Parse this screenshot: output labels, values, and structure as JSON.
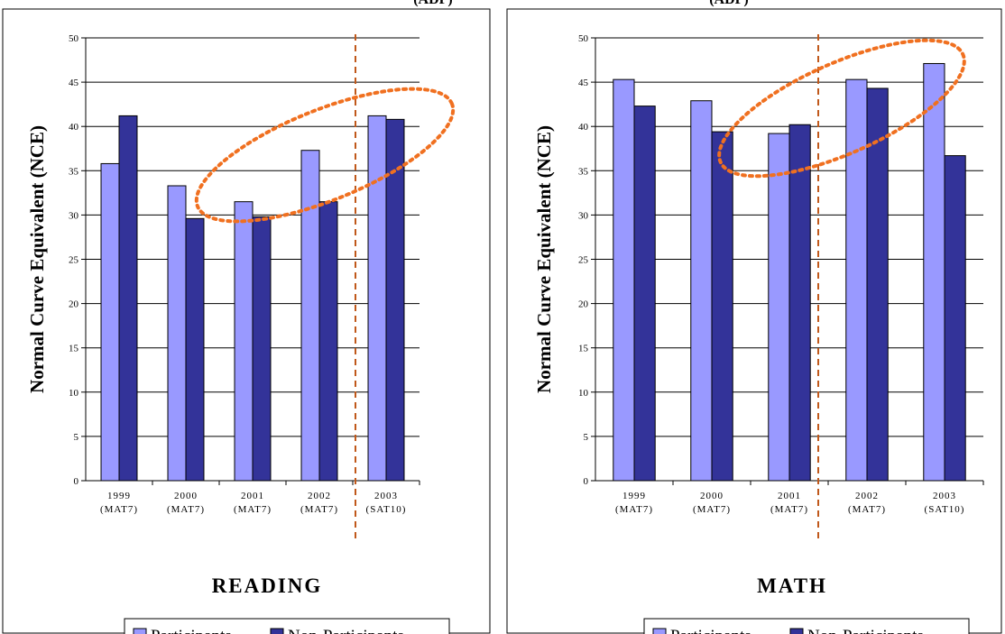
{
  "header": {
    "left_fragment": "(ADP)",
    "right_fragment": "(ADP)"
  },
  "colors": {
    "participants": "#9999FF",
    "non_participants": "#333399",
    "gridline": "#000000",
    "divider": "#C0581A",
    "ellipse": "#F07020"
  },
  "chart_data": [
    {
      "type": "bar",
      "title": "READING",
      "ylabel": "Normal  Curve Equivalent (NCE)",
      "xlabel": "",
      "categories": [
        "1999 (MAT7)",
        "2000 (MAT7)",
        "2001 (MAT7)",
        "2002 (MAT7)",
        "2003 (SAT10)"
      ],
      "category_lines": [
        [
          "1999",
          "(MAT7)"
        ],
        [
          "2000",
          "(MAT7)"
        ],
        [
          "2001",
          "(MAT7)"
        ],
        [
          "2002",
          "(MAT7)"
        ],
        [
          "2003",
          "(SAT10)"
        ]
      ],
      "series": [
        {
          "name": "Participants",
          "values": [
            35.8,
            33.3,
            31.5,
            37.3,
            41.2
          ]
        },
        {
          "name": "Non-Participants",
          "values": [
            41.2,
            29.6,
            29.8,
            31.5,
            40.8
          ]
        }
      ],
      "ylim": [
        0,
        50
      ],
      "yticks": [
        0,
        5,
        10,
        15,
        20,
        25,
        30,
        35,
        40,
        45,
        50
      ],
      "grid": true,
      "legend": "bottom"
    },
    {
      "type": "bar",
      "title": "MATH",
      "ylabel": "Normal  Curve Equivalent (NCE)",
      "xlabel": "",
      "categories": [
        "1999 (MAT7)",
        "2000 (MAT7)",
        "2001 (MAT7)",
        "2002 (MAT7)",
        "2003 (SAT10)"
      ],
      "category_lines": [
        [
          "1999",
          "(MAT7)"
        ],
        [
          "2000",
          "(MAT7)"
        ],
        [
          "2001",
          "(MAT7)"
        ],
        [
          "2002",
          "(MAT7)"
        ],
        [
          "2003",
          "(SAT10)"
        ]
      ],
      "series": [
        {
          "name": "Participants",
          "values": [
            45.3,
            42.9,
            39.2,
            45.3,
            47.1
          ]
        },
        {
          "name": "Non-Participants",
          "values": [
            42.3,
            39.4,
            40.2,
            44.3,
            36.7
          ]
        }
      ],
      "ylim": [
        0,
        50
      ],
      "yticks": [
        0,
        5,
        10,
        15,
        20,
        25,
        30,
        35,
        40,
        45,
        50
      ],
      "grid": true,
      "legend": "bottom"
    }
  ]
}
